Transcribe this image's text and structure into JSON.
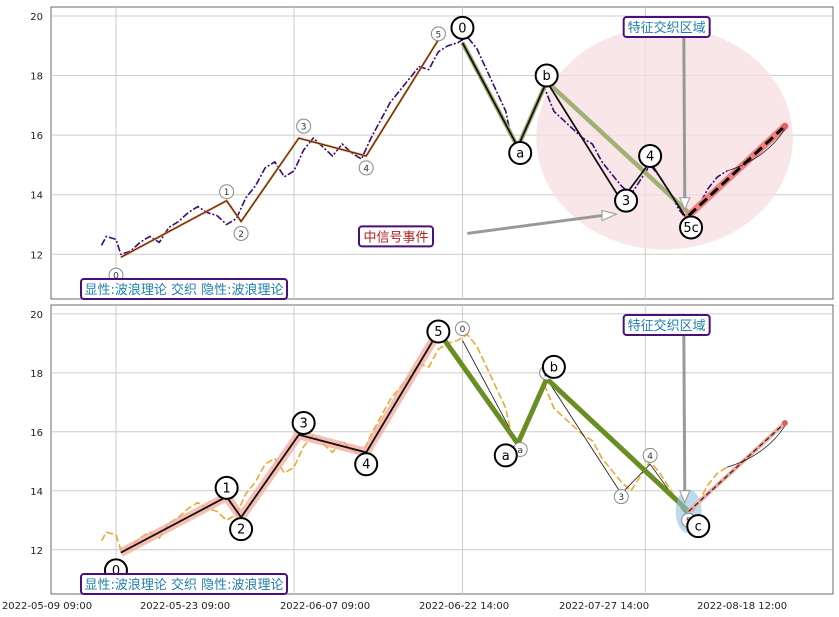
{
  "chart_data": [
    {
      "type": "line",
      "panel": "top",
      "ylim": [
        10.5,
        20.3
      ],
      "yticks": [
        12,
        14,
        16,
        18,
        20
      ],
      "grid": true,
      "x_categories": [
        "2022-05-09 09:00",
        "2022-05-23 09:00",
        "2022-06-07 09:00",
        "2022-06-22 14:00",
        "2022-07-27 14:00",
        "2022-08-18 12:00"
      ],
      "price_color": "#3d0a6e",
      "price": [
        [
          0.6,
          12.3
        ],
        [
          0.7,
          12.6
        ],
        [
          0.9,
          12.5
        ],
        [
          1.0,
          12.0
        ],
        [
          1.2,
          12.1
        ],
        [
          1.4,
          12.4
        ],
        [
          1.6,
          12.6
        ],
        [
          1.8,
          12.4
        ],
        [
          2.0,
          12.9
        ],
        [
          2.2,
          13.1
        ],
        [
          2.4,
          13.4
        ],
        [
          2.6,
          13.6
        ],
        [
          2.8,
          13.4
        ],
        [
          3.0,
          13.3
        ],
        [
          3.2,
          13.0
        ],
        [
          3.4,
          13.2
        ],
        [
          3.6,
          13.9
        ],
        [
          3.8,
          14.3
        ],
        [
          4.0,
          14.9
        ],
        [
          4.2,
          15.1
        ],
        [
          4.4,
          14.6
        ],
        [
          4.6,
          14.8
        ],
        [
          4.8,
          15.5
        ],
        [
          5.0,
          15.9
        ],
        [
          5.2,
          15.6
        ],
        [
          5.4,
          15.3
        ],
        [
          5.6,
          15.7
        ],
        [
          5.8,
          15.4
        ],
        [
          6.0,
          15.2
        ],
        [
          6.2,
          15.9
        ],
        [
          6.4,
          16.5
        ],
        [
          6.6,
          17.1
        ],
        [
          6.8,
          17.5
        ],
        [
          7.0,
          17.9
        ],
        [
          7.2,
          18.3
        ],
        [
          7.4,
          18.2
        ],
        [
          7.6,
          18.8
        ],
        [
          7.8,
          19.0
        ],
        [
          8.0,
          19.1
        ],
        [
          8.2,
          19.3
        ],
        [
          8.4,
          18.9
        ],
        [
          8.6,
          18.2
        ],
        [
          8.8,
          17.5
        ],
        [
          9.0,
          16.8
        ],
        [
          9.1,
          16.0
        ],
        [
          9.25,
          15.6
        ],
        [
          9.4,
          16.2
        ],
        [
          9.6,
          17.0
        ],
        [
          9.8,
          17.6
        ],
        [
          10.0,
          16.8
        ],
        [
          10.2,
          16.5
        ],
        [
          10.4,
          16.2
        ],
        [
          10.6,
          15.9
        ],
        [
          10.8,
          15.7
        ],
        [
          11.0,
          15.1
        ],
        [
          11.2,
          14.7
        ],
        [
          11.4,
          14.3
        ],
        [
          11.6,
          14.0
        ],
        [
          11.8,
          14.5
        ],
        [
          12.0,
          15.0
        ],
        [
          12.2,
          14.6
        ],
        [
          12.4,
          14.1
        ],
        [
          12.6,
          13.5
        ],
        [
          12.8,
          13.1
        ],
        [
          13.0,
          13.6
        ],
        [
          13.2,
          14.2
        ],
        [
          13.4,
          14.6
        ],
        [
          13.6,
          14.8
        ]
      ],
      "trend_orange": [
        [
          1.0,
          11.9
        ],
        [
          3.2,
          13.8
        ],
        [
          3.5,
          13.1
        ],
        [
          4.7,
          15.9
        ],
        [
          6.1,
          15.3
        ],
        [
          7.6,
          19.2
        ]
      ],
      "wave_olive": [
        [
          8.1,
          19.1
        ],
        [
          9.25,
          15.6
        ],
        [
          9.85,
          17.8
        ],
        [
          12.8,
          13.4
        ]
      ],
      "wave_black": [
        [
          8.1,
          19.1
        ],
        [
          9.25,
          15.6
        ],
        [
          9.85,
          17.8
        ],
        [
          11.4,
          13.8
        ],
        [
          12.0,
          15.1
        ],
        [
          12.8,
          13.1
        ]
      ],
      "projection": [
        [
          12.8,
          13.3
        ],
        [
          14.8,
          16.3
        ]
      ],
      "wave_labels_big": [
        {
          "text": "0",
          "x": 8.1,
          "y": 19.6
        },
        {
          "text": "a",
          "x": 9.3,
          "y": 15.4
        },
        {
          "text": "b",
          "x": 9.85,
          "y": 18.0
        },
        {
          "text": "3",
          "x": 11.5,
          "y": 13.8
        },
        {
          "text": "4",
          "x": 12.0,
          "y": 15.3
        },
        {
          "text": "5c",
          "x": 12.85,
          "y": 12.9
        }
      ],
      "wave_labels_small": [
        {
          "text": "0",
          "x": 0.9,
          "y": 11.3
        },
        {
          "text": "1",
          "x": 3.2,
          "y": 14.1
        },
        {
          "text": "2",
          "x": 3.5,
          "y": 12.7
        },
        {
          "text": "3",
          "x": 4.8,
          "y": 16.3
        },
        {
          "text": "4",
          "x": 6.1,
          "y": 14.9
        },
        {
          "text": "5",
          "x": 7.6,
          "y": 19.4
        }
      ],
      "annotations": {
        "feature_zone": "特征交织区域",
        "mid_signal": "中信号事件",
        "status": "显性:波浪理论 交织 隐性:波浪理论"
      }
    },
    {
      "type": "line",
      "panel": "bottom",
      "ylim": [
        10.5,
        20.3
      ],
      "yticks": [
        12,
        14,
        16,
        18,
        20
      ],
      "grid": true,
      "x_categories": [
        "2022-05-09 09:00",
        "2022-05-23 09:00",
        "2022-06-07 09:00",
        "2022-06-22 14:00",
        "2022-07-27 14:00",
        "2022-08-18 12:00"
      ],
      "price_color": "#f0a830",
      "price": [
        [
          0.6,
          12.3
        ],
        [
          0.7,
          12.6
        ],
        [
          0.9,
          12.5
        ],
        [
          1.0,
          12.0
        ],
        [
          1.2,
          12.1
        ],
        [
          1.4,
          12.4
        ],
        [
          1.6,
          12.6
        ],
        [
          1.8,
          12.4
        ],
        [
          2.0,
          12.9
        ],
        [
          2.2,
          13.1
        ],
        [
          2.4,
          13.4
        ],
        [
          2.6,
          13.6
        ],
        [
          2.8,
          13.4
        ],
        [
          3.0,
          13.3
        ],
        [
          3.2,
          13.0
        ],
        [
          3.4,
          13.2
        ],
        [
          3.6,
          13.9
        ],
        [
          3.8,
          14.3
        ],
        [
          4.0,
          14.9
        ],
        [
          4.2,
          15.1
        ],
        [
          4.4,
          14.6
        ],
        [
          4.6,
          14.8
        ],
        [
          4.8,
          15.5
        ],
        [
          5.0,
          15.9
        ],
        [
          5.2,
          15.6
        ],
        [
          5.4,
          15.3
        ],
        [
          5.6,
          15.7
        ],
        [
          5.8,
          15.4
        ],
        [
          6.0,
          15.2
        ],
        [
          6.2,
          15.9
        ],
        [
          6.4,
          16.5
        ],
        [
          6.6,
          17.1
        ],
        [
          6.8,
          17.5
        ],
        [
          7.0,
          17.9
        ],
        [
          7.2,
          18.3
        ],
        [
          7.4,
          18.2
        ],
        [
          7.6,
          18.8
        ],
        [
          7.8,
          19.0
        ],
        [
          8.0,
          19.1
        ],
        [
          8.2,
          19.3
        ],
        [
          8.4,
          18.9
        ],
        [
          8.6,
          18.2
        ],
        [
          8.8,
          17.5
        ],
        [
          9.0,
          16.8
        ],
        [
          9.1,
          16.0
        ],
        [
          9.25,
          15.6
        ],
        [
          9.4,
          16.2
        ],
        [
          9.6,
          17.0
        ],
        [
          9.8,
          17.6
        ],
        [
          10.0,
          16.8
        ],
        [
          10.2,
          16.5
        ],
        [
          10.4,
          16.2
        ],
        [
          10.6,
          15.9
        ],
        [
          10.8,
          15.7
        ],
        [
          11.0,
          15.1
        ],
        [
          11.2,
          14.7
        ],
        [
          11.4,
          14.3
        ],
        [
          11.6,
          14.0
        ],
        [
          11.8,
          14.5
        ],
        [
          12.0,
          15.0
        ],
        [
          12.2,
          14.6
        ],
        [
          12.4,
          14.1
        ],
        [
          12.6,
          13.5
        ],
        [
          12.8,
          13.1
        ],
        [
          13.0,
          13.6
        ],
        [
          13.2,
          14.2
        ],
        [
          13.4,
          14.6
        ],
        [
          13.6,
          14.8
        ]
      ],
      "wave_main": [
        [
          1.0,
          11.9
        ],
        [
          3.2,
          13.8
        ],
        [
          3.5,
          13.1
        ],
        [
          4.7,
          15.9
        ],
        [
          6.1,
          15.3
        ],
        [
          7.6,
          19.4
        ]
      ],
      "wave_green": [
        [
          7.6,
          19.4
        ],
        [
          9.25,
          15.6
        ],
        [
          9.85,
          17.8
        ],
        [
          12.8,
          13.3
        ]
      ],
      "wave_thin": [
        [
          8.1,
          19.1
        ],
        [
          9.25,
          15.6
        ],
        [
          9.85,
          17.8
        ],
        [
          11.4,
          13.9
        ],
        [
          12.0,
          14.9
        ],
        [
          12.8,
          13.1
        ]
      ],
      "projection": [
        [
          12.8,
          13.3
        ],
        [
          14.8,
          16.3
        ]
      ],
      "wave_labels_big": [
        {
          "text": "0",
          "x": 0.9,
          "y": 11.3
        },
        {
          "text": "1",
          "x": 3.2,
          "y": 14.1
        },
        {
          "text": "2",
          "x": 3.5,
          "y": 12.7
        },
        {
          "text": "3",
          "x": 4.8,
          "y": 16.3
        },
        {
          "text": "4",
          "x": 6.1,
          "y": 14.9
        },
        {
          "text": "5",
          "x": 7.6,
          "y": 19.4
        },
        {
          "text": "a",
          "x": 9.0,
          "y": 15.2
        },
        {
          "text": "b",
          "x": 10.0,
          "y": 18.2
        },
        {
          "text": "c",
          "x": 13.0,
          "y": 12.8
        }
      ],
      "wave_labels_small": [
        {
          "text": "0",
          "x": 8.1,
          "y": 19.5
        },
        {
          "text": "a",
          "x": 9.3,
          "y": 15.4
        },
        {
          "text": "b",
          "x": 9.85,
          "y": 18.0
        },
        {
          "text": "3",
          "x": 11.4,
          "y": 13.8
        },
        {
          "text": "4",
          "x": 12.0,
          "y": 15.2
        },
        {
          "text": "5",
          "x": 12.8,
          "y": 13.0
        }
      ],
      "annotations": {
        "feature_zone": "特征交织区域",
        "status": "显性:波浪理论 交织 隐性:波浪理论"
      }
    }
  ],
  "colors": {
    "grid": "#cccccc",
    "axis": "#444444",
    "box_border": "#4b0f7a",
    "box_text": "#1f7fb0",
    "red_text": "#b22222",
    "highlight_ellipse": "#f6dde2",
    "olive": "#a3b074",
    "green_thick": "#6b8e23",
    "salmon": "#f4a89a",
    "projection_red": "#f08080",
    "blue_halo": "#8fc2e0"
  }
}
